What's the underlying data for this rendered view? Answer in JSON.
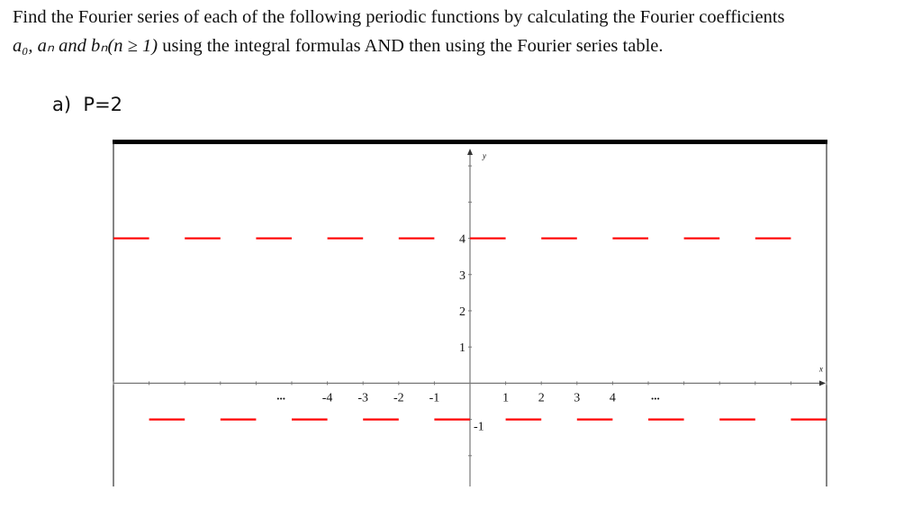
{
  "question": {
    "line1": "Find the Fourier series of each of the following periodic functions by calculating the Fourier coefficients",
    "line2_math": "a₀, aₙ and bₙ(n ≥ 1)",
    "line2_text": " using the integral formulas AND then using the Fourier series table."
  },
  "part": {
    "label": "a)",
    "period": "P=2"
  },
  "chart_data": {
    "type": "line",
    "style": "dashed piecewise-constant segments",
    "xlabel": "x",
    "ylabel": "y",
    "xlim": [
      -10,
      10
    ],
    "ylim": [
      -2.85,
      6.6
    ],
    "x_tick_labels": [
      "-4",
      "-3",
      "-2",
      "-1",
      "1",
      "2",
      "3",
      "4"
    ],
    "x_tick_values": [
      -4,
      -3,
      -2,
      -1,
      1,
      2,
      3,
      4
    ],
    "x_ellipsis": "...",
    "y_tick_labels": [
      "1",
      "2",
      "3",
      "4",
      "-1"
    ],
    "y_tick_values": [
      1,
      2,
      3,
      4,
      -1
    ],
    "series": [
      {
        "color": "#ff0000",
        "segments": [
          {
            "x": [
              -10,
              -9
            ],
            "y": 4
          },
          {
            "x": [
              -8,
              -7
            ],
            "y": 4
          },
          {
            "x": [
              -6,
              -5
            ],
            "y": 4
          },
          {
            "x": [
              -4,
              -3
            ],
            "y": 4
          },
          {
            "x": [
              -2,
              -1
            ],
            "y": 4
          },
          {
            "x": [
              0,
              1
            ],
            "y": 4
          },
          {
            "x": [
              2,
              3
            ],
            "y": 4
          },
          {
            "x": [
              4,
              5
            ],
            "y": 4
          },
          {
            "x": [
              6,
              7
            ],
            "y": 4
          },
          {
            "x": [
              8,
              9
            ],
            "y": 4
          },
          {
            "x": [
              -9,
              -8
            ],
            "y": -1
          },
          {
            "x": [
              -7,
              -6
            ],
            "y": -1
          },
          {
            "x": [
              -5,
              -4
            ],
            "y": -1
          },
          {
            "x": [
              -3,
              -2
            ],
            "y": -1
          },
          {
            "x": [
              -1,
              0
            ],
            "y": -1
          },
          {
            "x": [
              1,
              2
            ],
            "y": -1
          },
          {
            "x": [
              3,
              4
            ],
            "y": -1
          },
          {
            "x": [
              5,
              6
            ],
            "y": -1
          },
          {
            "x": [
              7,
              8
            ],
            "y": -1
          },
          {
            "x": [
              9,
              10
            ],
            "y": -1
          }
        ]
      }
    ],
    "grid": false,
    "frame_color": "#000000"
  }
}
